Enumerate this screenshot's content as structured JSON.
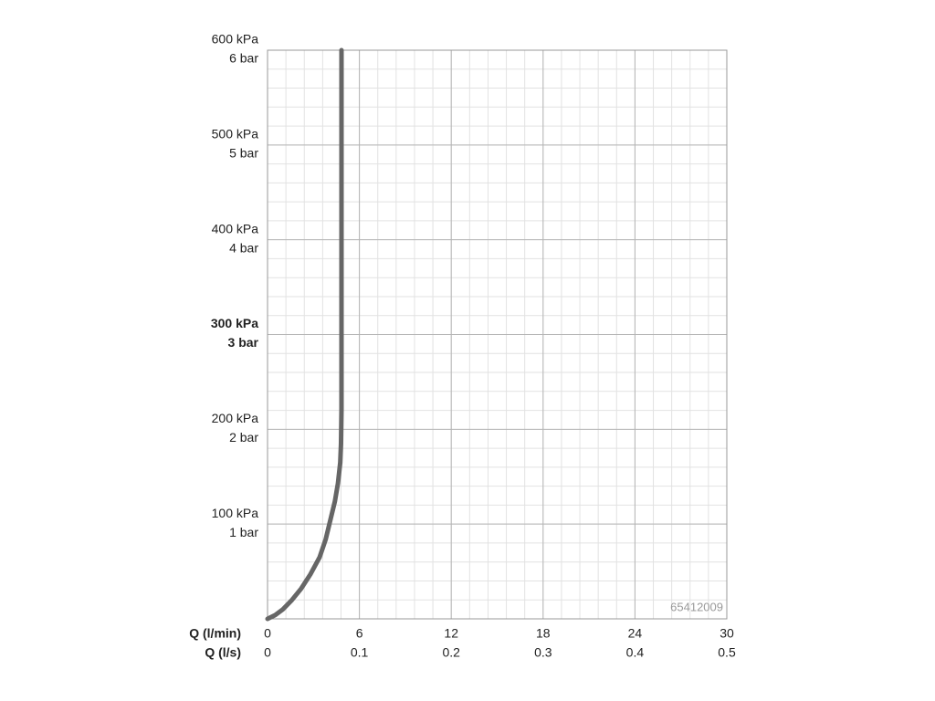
{
  "chart_data": {
    "type": "line",
    "x_label": "Q (l/min)",
    "x2_label": "Q (l/s)",
    "x": [
      0,
      0.5,
      1,
      1.6,
      2.2,
      2.8,
      3.4,
      3.8,
      4.1,
      4.4,
      4.6,
      4.75,
      4.8,
      4.83,
      4.83,
      4.83
    ],
    "series": [
      {
        "color": "#666666",
        "values": [
          0,
          4,
          10,
          20,
          32,
          47,
          65,
          84,
          104,
          124,
          143,
          165,
          185,
          220,
          400,
          600
        ]
      }
    ],
    "xlim": [
      0,
      30
    ],
    "xticks": [
      0,
      6,
      12,
      18,
      24,
      30
    ],
    "x2lim": [
      0,
      0.5
    ],
    "x2ticks": [
      0,
      0.1,
      0.2,
      0.3,
      0.4,
      0.5
    ],
    "ylim": [
      0,
      600
    ],
    "yticks": [
      {
        "value": 100,
        "label": "100 kPa"
      },
      {
        "value": 200,
        "label": "200 kPa"
      },
      {
        "value": 300,
        "label": "300 kPa"
      },
      {
        "value": 400,
        "label": "400 kPa"
      },
      {
        "value": 500,
        "label": "500 kPa"
      },
      {
        "value": 600,
        "label": "600 kPa"
      }
    ],
    "y2lim": [
      0,
      6
    ],
    "y2ticks": [
      {
        "value": 1,
        "label": "1 bar"
      },
      {
        "value": 2,
        "label": "2 bar"
      },
      {
        "value": 3,
        "label": "3 bar"
      },
      {
        "value": 4,
        "label": "4 bar"
      },
      {
        "value": 5,
        "label": "5 bar"
      },
      {
        "value": 6,
        "label": "6 bar"
      }
    ],
    "highlight_ytick": 300,
    "grid": true,
    "annotation": "65412009"
  }
}
